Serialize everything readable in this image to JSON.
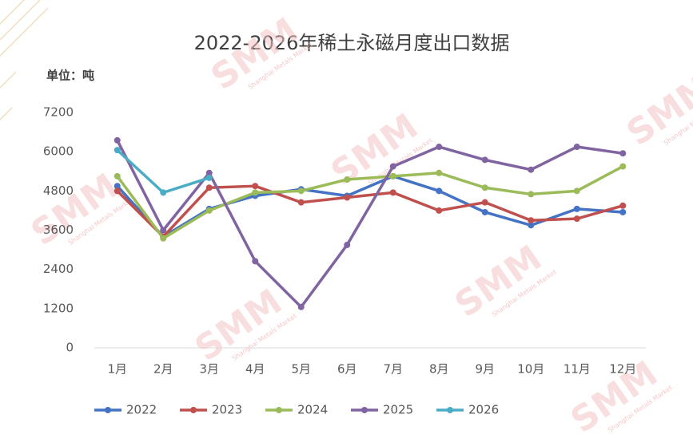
{
  "chart_data": {
    "type": "line",
    "title": "2022-2026年稀土永磁月度出口数据",
    "y_label": "单位：吨",
    "watermark": "SMM",
    "watermark_subtitle": "Shanghai Metals Market",
    "categories": [
      "1月",
      "2月",
      "3月",
      "4月",
      "5月",
      "6月",
      "7月",
      "8月",
      "9月",
      "10月",
      "11月",
      "12月"
    ],
    "series": [
      {
        "name": "2022",
        "color": "#4472c4",
        "values": [
          4950,
          3400,
          4250,
          4650,
          4850,
          4650,
          5250,
          4800,
          4150,
          3750,
          4250,
          4150
        ]
      },
      {
        "name": "2023",
        "color": "#c0504d",
        "values": [
          4800,
          3400,
          4900,
          4950,
          4450,
          4600,
          4750,
          4200,
          4450,
          3900,
          3950,
          4350
        ]
      },
      {
        "name": "2024",
        "color": "#9bbb59",
        "values": [
          5250,
          3350,
          4200,
          4750,
          4800,
          5150,
          5250,
          5350,
          4900,
          4700,
          4800,
          5550
        ]
      },
      {
        "name": "2025",
        "color": "#8064a2",
        "values": [
          6350,
          3600,
          5350,
          2650,
          1250,
          3150,
          5550,
          6150,
          5750,
          5450,
          6150,
          5950
        ]
      },
      {
        "name": "2026",
        "color": "#4bacc6",
        "values": [
          6050,
          4750,
          5200,
          null,
          null,
          null,
          null,
          null,
          null,
          null,
          null,
          null
        ]
      }
    ],
    "ylim": [
      0,
      7200
    ],
    "yticks": [
      0,
      1200,
      2400,
      3600,
      4800,
      6000,
      7200
    ],
    "grid": false,
    "legend": "bottom"
  }
}
